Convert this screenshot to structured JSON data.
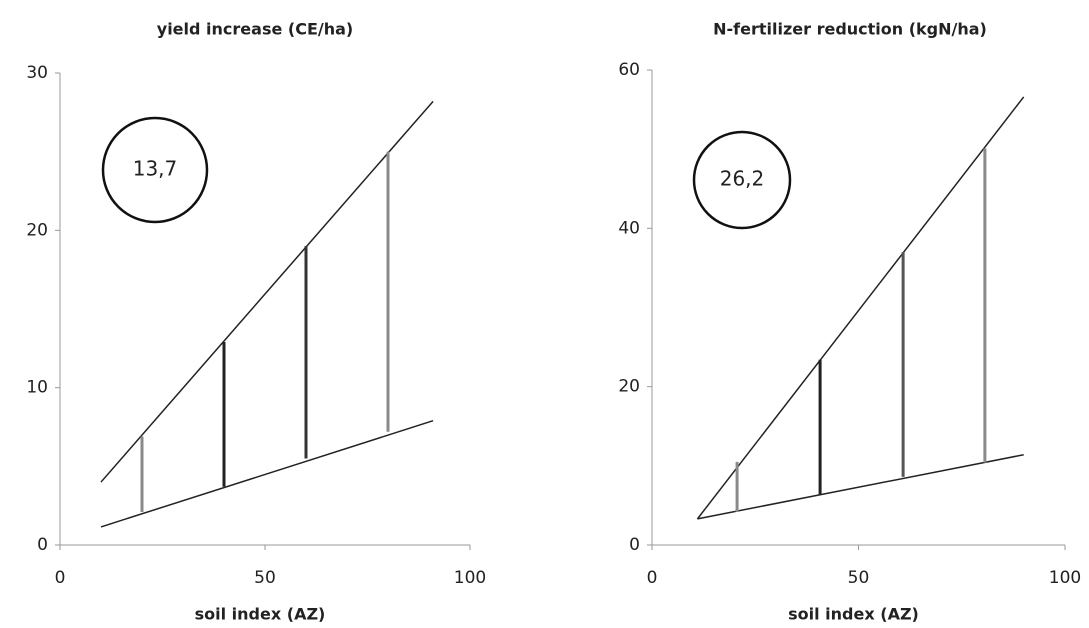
{
  "chart_data": [
    {
      "type": "range-lines",
      "title": "yield increase (CE/ha)",
      "x_label": "soil index (AZ)",
      "annotation": "13,7",
      "xlim": [
        0,
        100
      ],
      "xticks": [
        0,
        50,
        100
      ],
      "ylim": [
        0,
        30
      ],
      "yticks": [
        0,
        10,
        20,
        30
      ],
      "lines": [
        {
          "color": "#222222",
          "x": [
            10,
            91
          ],
          "values": [
            4.0,
            28.2
          ]
        },
        {
          "color": "#222222",
          "x": [
            10,
            91
          ],
          "values": [
            1.15,
            7.9
          ]
        }
      ],
      "ranges": {
        "x": [
          20,
          40,
          60,
          80
        ],
        "low": [
          2.1,
          3.7,
          5.5,
          7.2
        ],
        "high": [
          6.9,
          12.9,
          19,
          25
        ],
        "colors": [
          "#8a8a8a",
          "#222222",
          "#333333",
          "#8a8a8a"
        ]
      }
    },
    {
      "type": "range-lines",
      "title": "N-fertilizer reduction (kgN/ha)",
      "x_label": "soil index (AZ)",
      "annotation": "26,2",
      "xlim": [
        0,
        100
      ],
      "xticks": [
        0,
        50,
        100
      ],
      "ylim": [
        0,
        60
      ],
      "yticks": [
        0,
        20,
        40,
        60
      ],
      "lines": [
        {
          "color": "#222222",
          "x": [
            11,
            90
          ],
          "values": [
            3.3,
            56.6
          ]
        },
        {
          "color": "#222222",
          "x": [
            11,
            90
          ],
          "values": [
            3.3,
            11.4
          ]
        }
      ],
      "ranges": {
        "x": [
          20.6,
          40.7,
          60.8,
          80.6
        ],
        "low": [
          4.2,
          6.4,
          8.6,
          10.4
        ],
        "high": [
          10.5,
          23.4,
          37,
          50.1
        ],
        "colors": [
          "#8a8a8a",
          "#222222",
          "#555555",
          "#8a8a8a"
        ]
      }
    }
  ]
}
